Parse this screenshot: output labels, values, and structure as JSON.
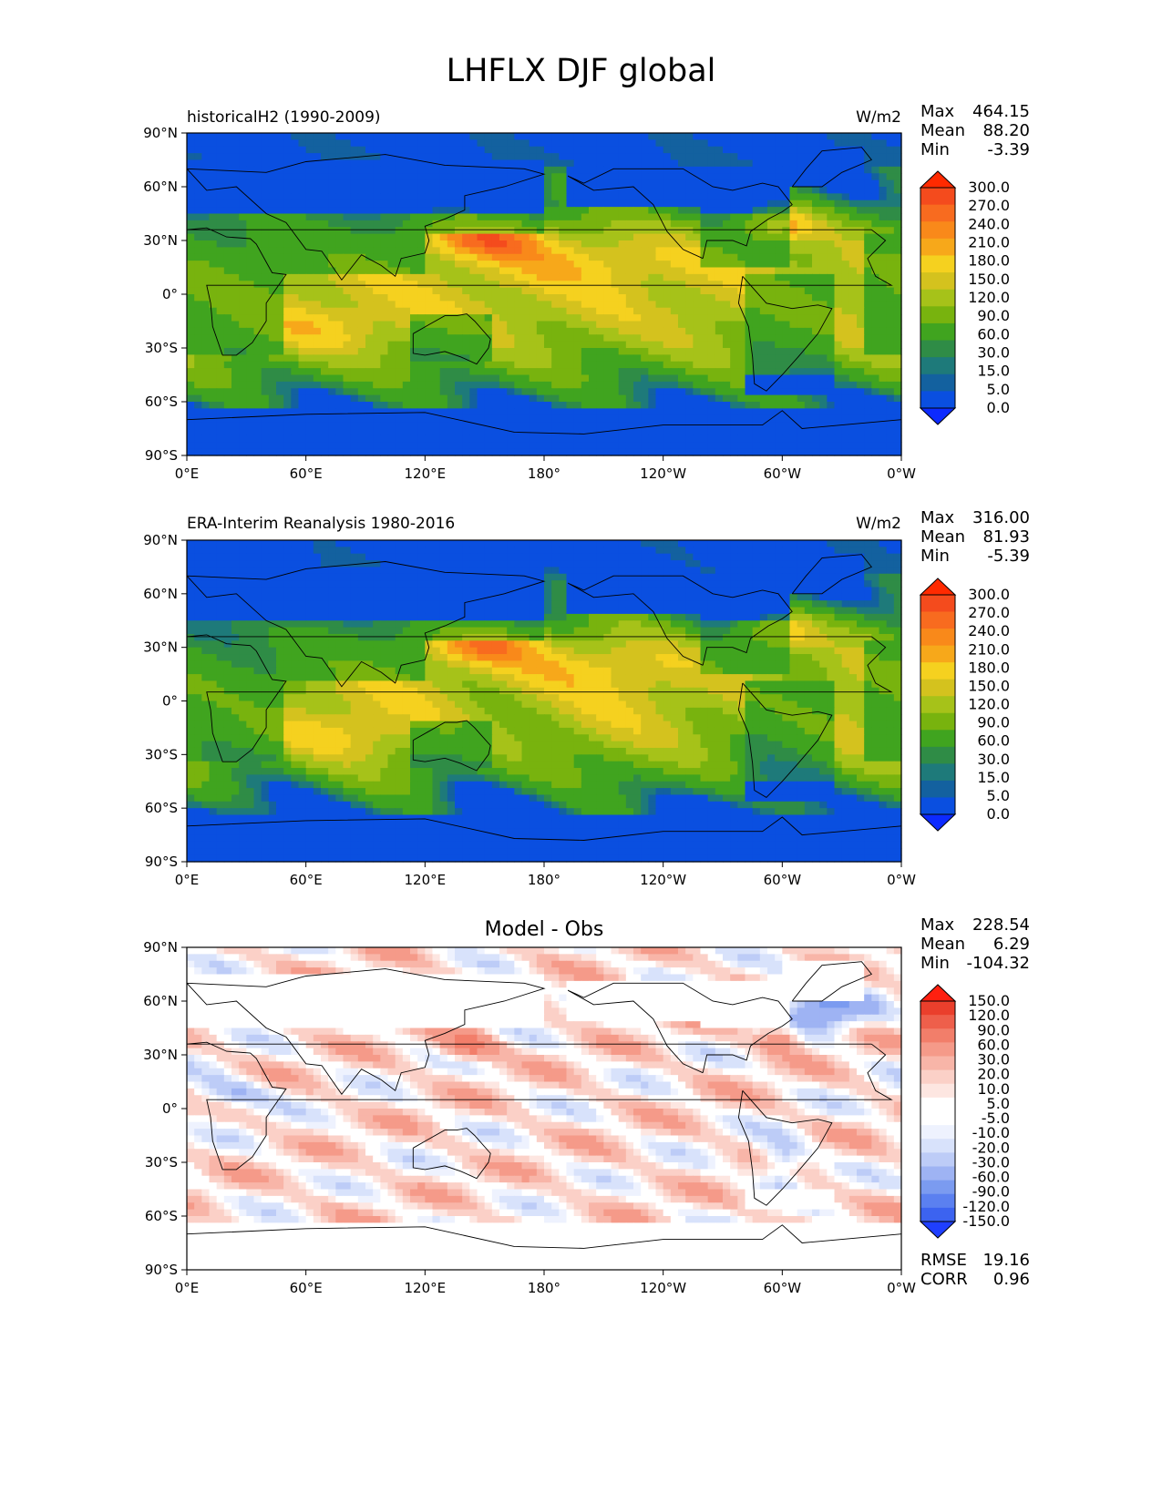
{
  "figure": {
    "title": "LHFLX DJF global"
  },
  "colors": {
    "abs_levels": [
      "#0c2aff",
      "#0a4fe0",
      "#13619f",
      "#1e7a7a",
      "#2f8c46",
      "#40a41f",
      "#78b30e",
      "#a6c219",
      "#d4c21e",
      "#f5d11f",
      "#f7a81a",
      "#f9891a",
      "#f86b1f",
      "#f44b1d",
      "#ff2a00"
    ],
    "diff_levels": [
      "#1f3fff",
      "#3c63f0",
      "#5b80f0",
      "#7b9bf0",
      "#9eb3f3",
      "#bdccf7",
      "#d8e2fb",
      "#eef2fe",
      "#ffffff",
      "#ffffff",
      "#fde6e1",
      "#fbd0c7",
      "#f8b5a8",
      "#f59a89",
      "#f27e6a",
      "#ee5f4b",
      "#ea3f2c",
      "#ff2010"
    ],
    "land_line": "#000000"
  },
  "chart_data": [
    {
      "type": "heatmap",
      "name": "model",
      "title": "historicalH2 (1990-2009)",
      "units": "W/m2",
      "stats": [
        {
          "label": "Max",
          "value": "464.15"
        },
        {
          "label": "Mean",
          "value": "88.20"
        },
        {
          "label": "Min",
          "value": "-3.39"
        }
      ],
      "colorbar_ticks": [
        "300.0",
        "270.0",
        "240.0",
        "210.0",
        "180.0",
        "150.0",
        "120.0",
        "90.0",
        "60.0",
        "30.0",
        "15.0",
        "5.0",
        "0.0"
      ],
      "xticks": [
        "0°E",
        "60°E",
        "120°E",
        "180°",
        "120°W",
        "60°W",
        "0°W"
      ],
      "yticks": [
        "90°N",
        "60°N",
        "30°N",
        "0°",
        "30°S",
        "60°S",
        "90°S"
      ],
      "xlim": [
        0,
        360
      ],
      "ylim": [
        -90,
        90
      ]
    },
    {
      "type": "heatmap",
      "name": "obs",
      "title": "ERA-Interim Reanalysis 1980-2016",
      "units": "W/m2",
      "stats": [
        {
          "label": "Max",
          "value": "316.00"
        },
        {
          "label": "Mean",
          "value": "81.93"
        },
        {
          "label": "Min",
          "value": "-5.39"
        }
      ],
      "colorbar_ticks": [
        "300.0",
        "270.0",
        "240.0",
        "210.0",
        "180.0",
        "150.0",
        "120.0",
        "90.0",
        "60.0",
        "30.0",
        "15.0",
        "5.0",
        "0.0"
      ],
      "xticks": [
        "0°E",
        "60°E",
        "120°E",
        "180°",
        "120°W",
        "60°W",
        "0°W"
      ],
      "yticks": [
        "90°N",
        "60°N",
        "30°N",
        "0°",
        "30°S",
        "60°S",
        "90°S"
      ],
      "xlim": [
        0,
        360
      ],
      "ylim": [
        -90,
        90
      ]
    },
    {
      "type": "heatmap",
      "name": "diff",
      "title": "Model - Obs",
      "units": "",
      "stats": [
        {
          "label": "Max",
          "value": "228.54"
        },
        {
          "label": "Mean",
          "value": "6.29"
        },
        {
          "label": "Min",
          "value": "-104.32"
        }
      ],
      "extra_stats": [
        {
          "label": "RMSE",
          "value": "19.16"
        },
        {
          "label": "CORR",
          "value": "0.96"
        }
      ],
      "colorbar_ticks": [
        "150.0",
        "120.0",
        "90.0",
        "60.0",
        "30.0",
        "20.0",
        "10.0",
        "5.0",
        "-5.0",
        "-10.0",
        "-20.0",
        "-30.0",
        "-60.0",
        "-90.0",
        "-120.0",
        "-150.0"
      ],
      "xticks": [
        "0°E",
        "60°E",
        "120°E",
        "180°",
        "120°W",
        "60°W",
        "0°W"
      ],
      "yticks": [
        "90°N",
        "60°N",
        "30°N",
        "0°",
        "30°S",
        "60°S",
        "90°S"
      ],
      "xlim": [
        0,
        360
      ],
      "ylim": [
        -90,
        90
      ]
    }
  ]
}
